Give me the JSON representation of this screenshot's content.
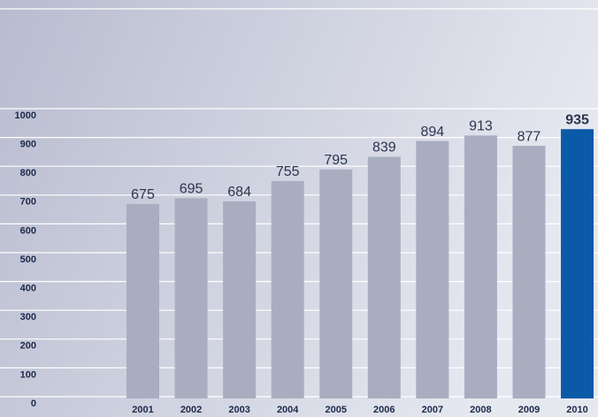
{
  "chart_data": {
    "type": "bar",
    "categories": [
      "2001",
      "2002",
      "2003",
      "2004",
      "2005",
      "2006",
      "2007",
      "2008",
      "2009",
      "2010"
    ],
    "values": [
      675,
      695,
      684,
      755,
      795,
      839,
      894,
      913,
      877,
      935
    ],
    "color": "#a8adc0",
    "highlight": "2010",
    "highlight_color": "#0b5aa8",
    "ylim": [
      0,
      1000
    ],
    "yticks": [
      0,
      100,
      200,
      300,
      400,
      500,
      600,
      700,
      800,
      900,
      1000
    ],
    "grid": true
  }
}
